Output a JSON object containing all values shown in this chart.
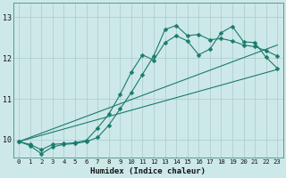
{
  "xlabel": "Humidex (Indice chaleur)",
  "ylabel": "",
  "bg_color": "#cde8e8",
  "grid_color": "#b0d0d0",
  "line_color": "#1a7a6e",
  "xlim": [
    -0.5,
    23.5
  ],
  "ylim": [
    9.55,
    13.35
  ],
  "yticks": [
    10,
    11,
    12,
    13
  ],
  "xticks": [
    0,
    1,
    2,
    3,
    4,
    5,
    6,
    7,
    8,
    9,
    10,
    11,
    12,
    13,
    14,
    15,
    16,
    17,
    18,
    19,
    20,
    21,
    22,
    23
  ],
  "lines": [
    {
      "x": [
        0,
        1,
        2,
        3,
        4,
        5,
        6,
        7,
        8,
        9,
        10,
        11,
        12,
        13,
        14,
        15,
        16,
        17,
        18,
        19,
        20,
        21,
        22,
        23
      ],
      "y": [
        9.95,
        9.85,
        9.65,
        9.82,
        9.88,
        9.9,
        9.95,
        10.05,
        10.35,
        10.75,
        11.15,
        11.6,
        12.05,
        12.7,
        12.8,
        12.55,
        12.58,
        12.45,
        12.48,
        12.42,
        12.32,
        12.28,
        12.18,
        12.05
      ],
      "marker": "D",
      "markersize": 3.0,
      "has_marker": true
    },
    {
      "x": [
        0,
        1,
        2,
        3,
        4,
        5,
        6,
        7,
        8,
        9,
        10,
        11,
        12,
        13,
        14,
        15,
        16,
        17,
        18,
        19,
        20,
        21,
        22,
        23
      ],
      "y": [
        9.95,
        9.88,
        9.75,
        9.88,
        9.9,
        9.92,
        9.98,
        10.28,
        10.62,
        11.1,
        11.65,
        12.08,
        11.95,
        12.38,
        12.55,
        12.42,
        12.08,
        12.22,
        12.62,
        12.78,
        12.4,
        12.38,
        12.02,
        11.75
      ],
      "marker": "D",
      "markersize": 3.0,
      "has_marker": true
    },
    {
      "x": [
        0,
        23
      ],
      "y": [
        9.95,
        11.72
      ],
      "marker": null,
      "markersize": 0,
      "has_marker": false
    },
    {
      "x": [
        0,
        23
      ],
      "y": [
        9.95,
        12.32
      ],
      "marker": null,
      "markersize": 0,
      "has_marker": false
    }
  ]
}
